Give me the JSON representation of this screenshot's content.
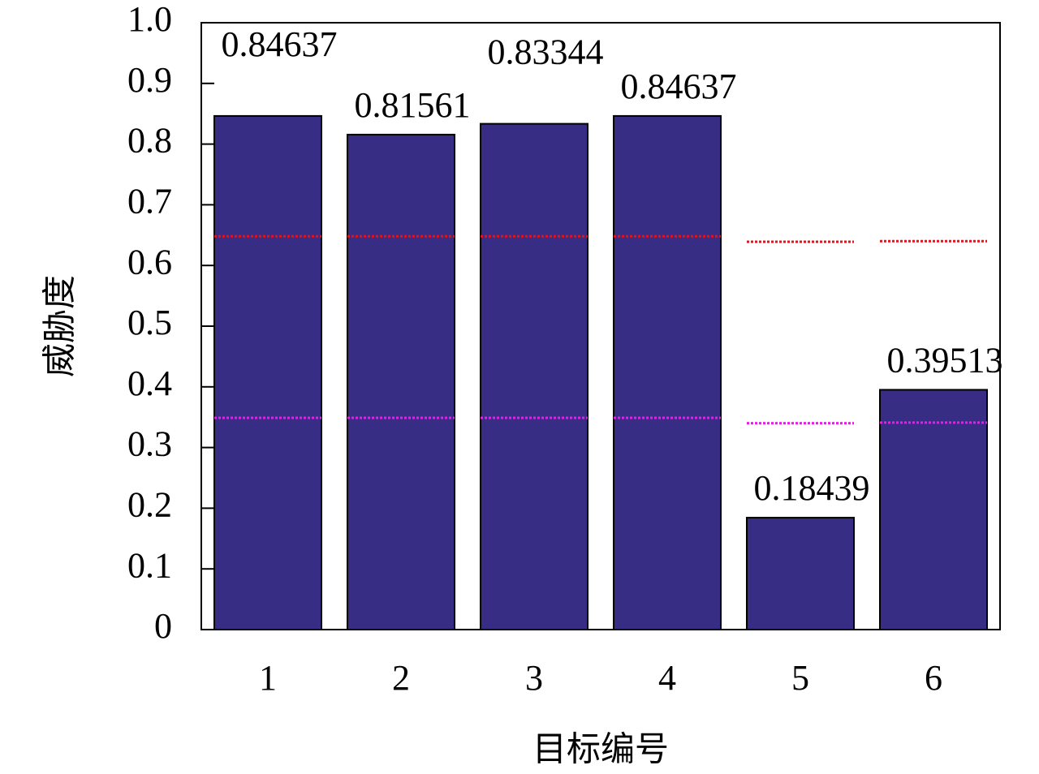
{
  "chart_data": {
    "type": "bar",
    "xlabel": "目标编号",
    "ylabel": "威胁度",
    "categories": [
      "1",
      "2",
      "3",
      "4",
      "5",
      "6"
    ],
    "values": [
      0.84637,
      0.81561,
      0.83344,
      0.84637,
      0.18439,
      0.39513
    ],
    "color": "#372d85",
    "upper_threshold": {
      "color": "#e0141e",
      "values": [
        0.648,
        0.648,
        0.648,
        0.648,
        0.639,
        0.64
      ]
    },
    "lower_threshold": {
      "color": "#e61ee6",
      "values": [
        0.349,
        0.349,
        0.349,
        0.349,
        0.34,
        0.341
      ]
    },
    "ylim": [
      0,
      1
    ],
    "yticks": [
      0,
      0.1,
      0.2,
      0.3,
      0.4,
      0.5,
      0.6,
      0.7,
      0.8,
      0.9,
      {
        "value": 1,
        "label": "1.0"
      }
    ],
    "grid": false
  }
}
